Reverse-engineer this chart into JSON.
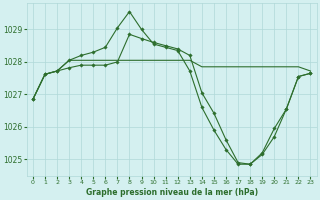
{
  "title": "Graphe pression niveau de la mer (hPa)",
  "background_color": "#d4f0f0",
  "grid_color": "#b0d8d8",
  "line_color": "#2d6e2d",
  "xlim": [
    -0.5,
    23.5
  ],
  "ylim": [
    1024.5,
    1029.8
  ],
  "yticks": [
    1025,
    1026,
    1027,
    1028,
    1029
  ],
  "xticks": [
    0,
    1,
    2,
    3,
    4,
    5,
    6,
    7,
    8,
    9,
    10,
    11,
    12,
    13,
    14,
    15,
    16,
    17,
    18,
    19,
    20,
    21,
    22,
    23
  ],
  "series": [
    {
      "x": [
        0,
        1,
        2,
        3,
        4,
        5,
        6,
        7,
        8,
        9,
        10,
        11,
        12,
        13,
        14,
        15,
        16,
        17,
        18,
        19,
        20,
        21,
        22,
        23
      ],
      "y": [
        1026.85,
        1027.62,
        1027.72,
        1028.05,
        1028.05,
        1028.05,
        1028.05,
        1028.05,
        1028.05,
        1028.05,
        1028.05,
        1028.05,
        1028.05,
        1028.05,
        1027.85,
        1027.85,
        1027.85,
        1027.85,
        1027.85,
        1027.85,
        1027.85,
        1027.85,
        1027.85,
        1027.72
      ],
      "has_markers": false
    },
    {
      "x": [
        0,
        1,
        2,
        3,
        4,
        5,
        6,
        7,
        8,
        9,
        10,
        11,
        12,
        13,
        14,
        15,
        16,
        17,
        18,
        19,
        20,
        21,
        22,
        23
      ],
      "y": [
        1026.85,
        1027.62,
        1027.72,
        1028.05,
        1028.2,
        1028.3,
        1028.45,
        1029.05,
        1029.55,
        1029.0,
        1028.55,
        1028.45,
        1028.35,
        1027.72,
        1026.6,
        1025.9,
        1025.3,
        1024.85,
        1024.85,
        1025.2,
        1025.95,
        1026.55,
        1027.55,
        1027.65
      ],
      "has_markers": true
    },
    {
      "x": [
        0,
        1,
        2,
        3,
        4,
        5,
        6,
        7,
        8,
        9,
        10,
        11,
        12,
        13,
        14,
        15,
        16,
        17,
        18,
        19,
        20,
        21,
        22,
        23
      ],
      "y": [
        1026.85,
        1027.62,
        1027.72,
        1027.82,
        1027.9,
        1027.9,
        1027.9,
        1028.0,
        1028.85,
        1028.72,
        1028.6,
        1028.5,
        1028.4,
        1028.2,
        1027.05,
        1026.42,
        1025.6,
        1024.9,
        1024.85,
        1025.15,
        1025.7,
        1026.55,
        1027.55,
        1027.65
      ],
      "has_markers": true
    }
  ]
}
